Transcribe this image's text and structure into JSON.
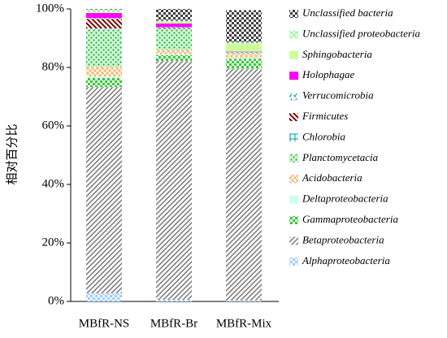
{
  "chart_data": {
    "type": "stacked_bar",
    "y_label": "相对百分比",
    "categories": [
      "MBfR-NS",
      "MBfR-Br",
      "MBfR-Mix"
    ],
    "ylim": [
      0,
      100
    ],
    "yticks": [
      {
        "value": 0,
        "label": "0%"
      },
      {
        "value": 20,
        "label": "20%"
      },
      {
        "value": 40,
        "label": "40%"
      },
      {
        "value": 60,
        "label": "60%"
      },
      {
        "value": 80,
        "label": "80%"
      },
      {
        "value": 100,
        "label": "100%"
      }
    ],
    "series": [
      {
        "name": "Alphaproteobacteria",
        "color": "#99ccff",
        "values": [
          2.7,
          0.5,
          0.3
        ]
      },
      {
        "name": "Betaproteobacteria",
        "color": "#808080",
        "values": [
          70.6,
          81.7,
          79.3
        ]
      },
      {
        "name": "Gammaproteobacteria",
        "color": "#33cc33",
        "values": [
          3.1,
          2.0,
          3.4
        ]
      },
      {
        "name": "Deltaproteobacteria",
        "color": "#ccffee",
        "values": [
          0.5,
          0.3,
          0.3
        ]
      },
      {
        "name": "Acidobacteria",
        "color": "#ff9933",
        "values": [
          3.4,
          1.6,
          1.3
        ]
      },
      {
        "name": "Planctomycetacia",
        "color": "#339966",
        "values": [
          12.7,
          6.9,
          0.2
        ]
      },
      {
        "name": "Chlorobia",
        "color": "#009999",
        "values": [
          0.3,
          0.2,
          0.1
        ]
      },
      {
        "name": "Firmicutes",
        "color": "#800000",
        "values": [
          3.3,
          0.3,
          0.2
        ]
      },
      {
        "name": "Verrucomicrobia",
        "color": "#009999",
        "values": [
          0.3,
          0.3,
          0.2
        ]
      },
      {
        "name": "Holophagae",
        "color": "#ff00ff",
        "values": [
          1.7,
          1.2,
          0.1
        ]
      },
      {
        "name": "Sphingobacteria",
        "color": "#ccff99",
        "values": [
          0.3,
          0.5,
          2.7
        ]
      },
      {
        "name": "Unclassified proteobacteria",
        "color": "#99ff99",
        "values": [
          0.9,
          0.5,
          0.5
        ]
      },
      {
        "name": "Unclassified bacteria",
        "color": "#404040",
        "values": [
          0.2,
          4.0,
          11.0
        ]
      }
    ]
  }
}
